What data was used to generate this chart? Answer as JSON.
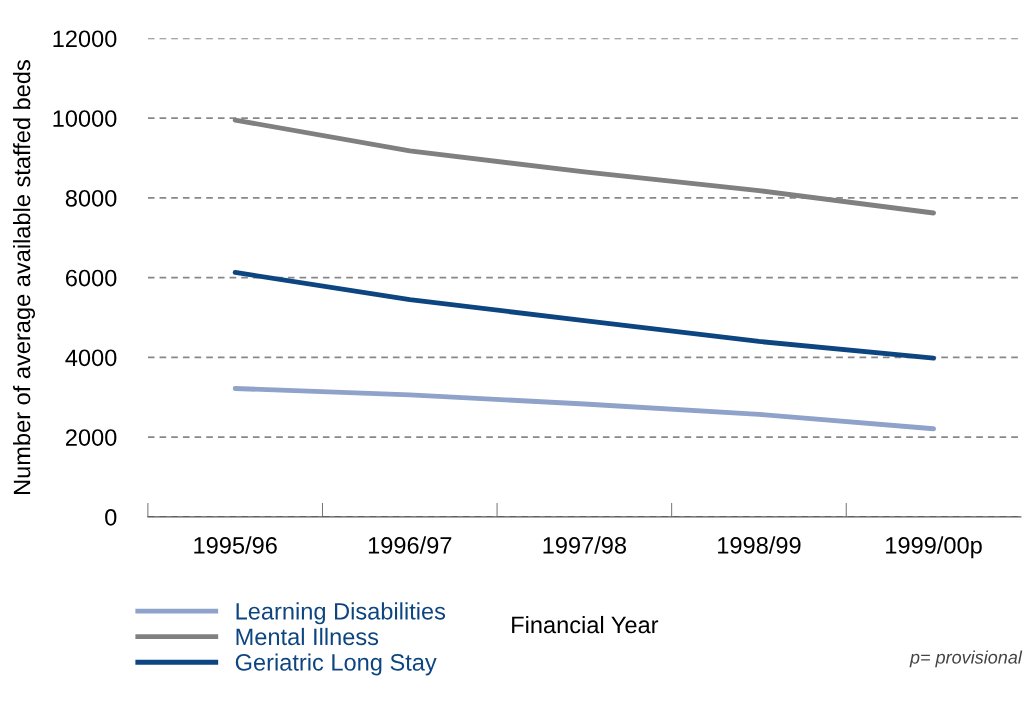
{
  "chart_data": {
    "type": "line",
    "xlabel": "Financial Year",
    "ylabel": "Number of average available staffed beds",
    "categories": [
      "1995/96",
      "1996/97",
      "1997/98",
      "1998/99",
      "1999/00p"
    ],
    "series": [
      {
        "name": "Learning Disabilities",
        "color": "#8fa2c9",
        "values": [
          3220,
          3060,
          2830,
          2570,
          2210
        ]
      },
      {
        "name": "Mental Illness",
        "color": "#808080",
        "values": [
          9950,
          9180,
          8650,
          8180,
          7620
        ]
      },
      {
        "name": "Geriatric Long Stay",
        "color": "#0d4580",
        "values": [
          6130,
          5450,
          4920,
          4400,
          3980
        ]
      }
    ],
    "ylim": [
      0,
      12000
    ],
    "yticks": [
      0,
      2000,
      4000,
      6000,
      8000,
      10000,
      12000
    ],
    "grid": "y",
    "legend": "bottom left",
    "marker": "none",
    "line_style": "solid",
    "annotations": [
      "p= provisional"
    ]
  }
}
